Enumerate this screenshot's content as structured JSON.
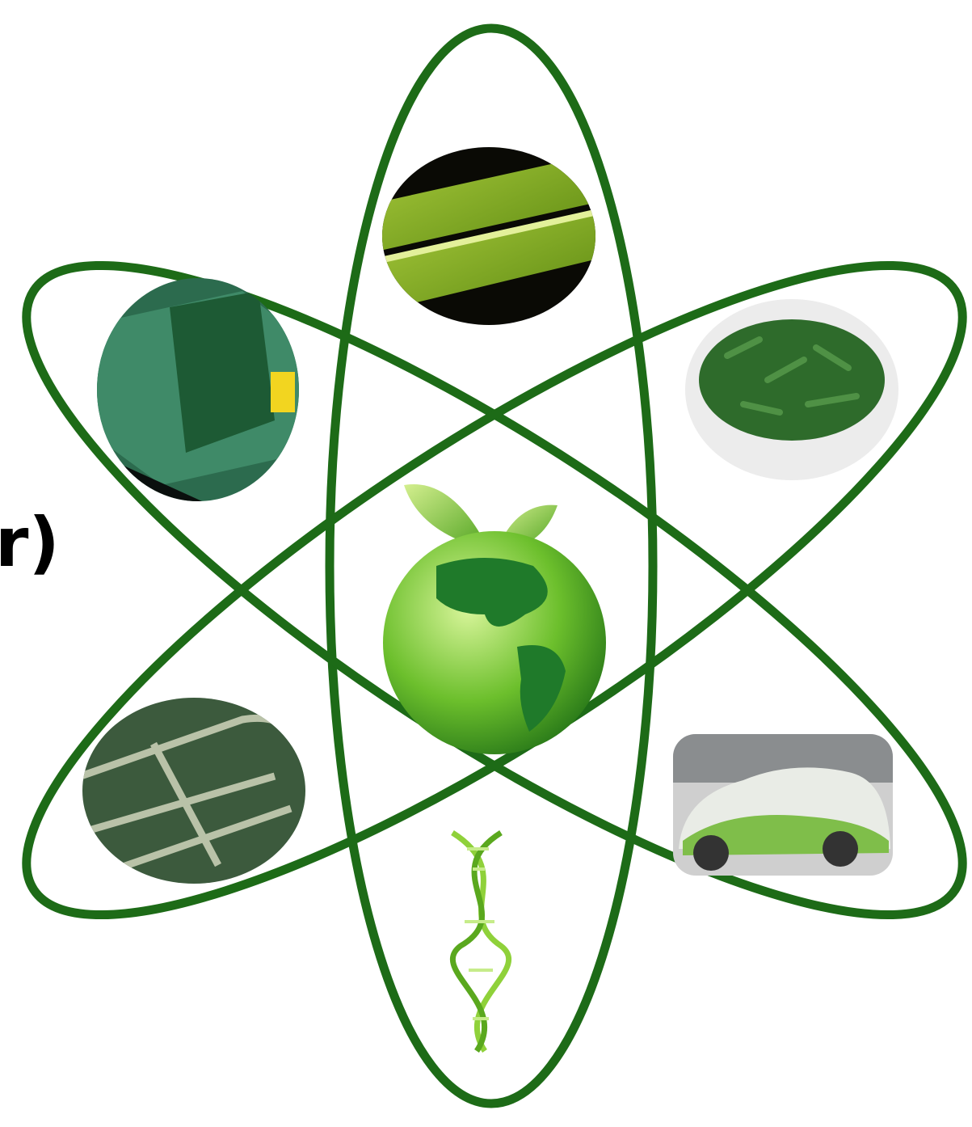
{
  "text": {
    "fragment": "r)"
  }
}
